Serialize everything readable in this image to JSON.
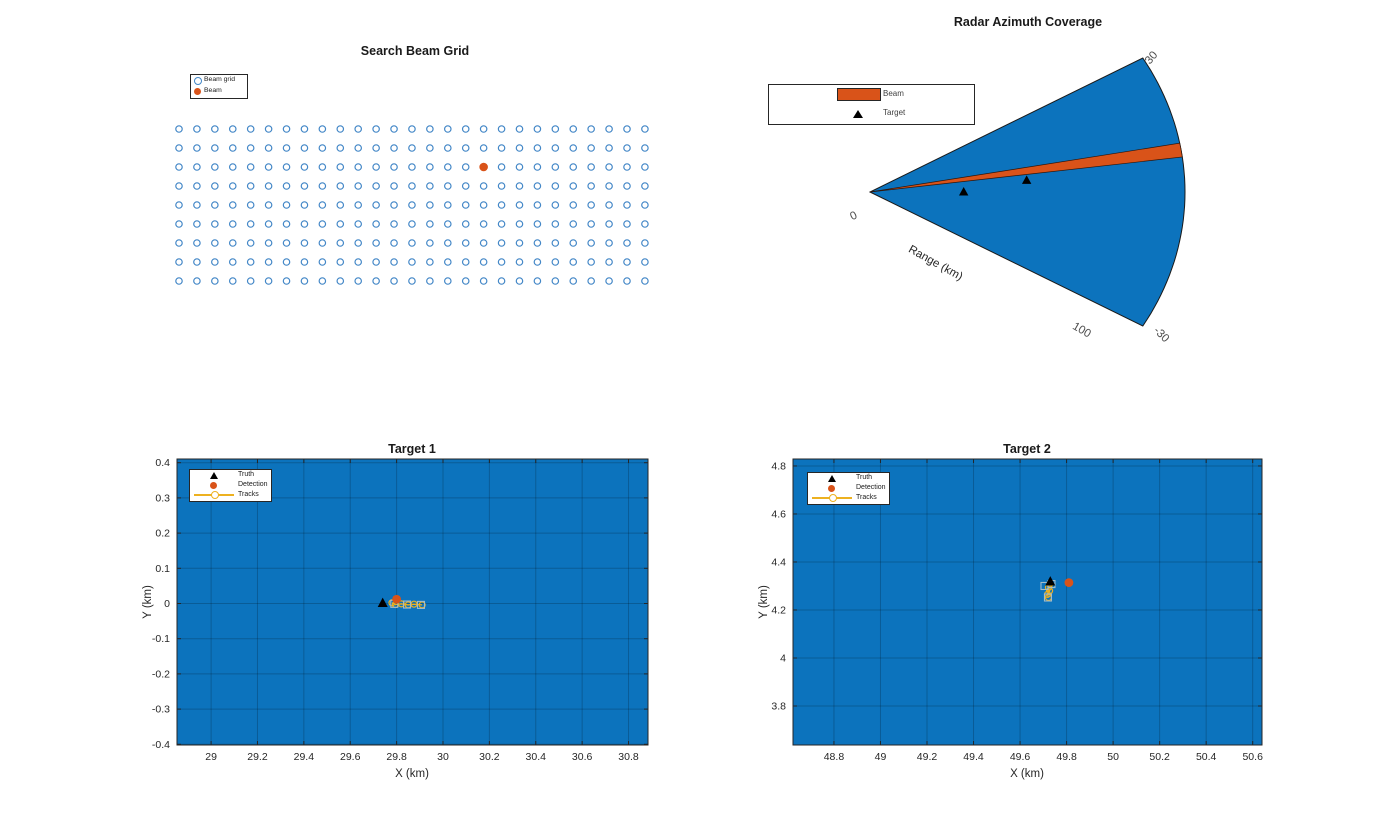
{
  "chart_data": [
    {
      "id": "beam-grid",
      "type": "scatter",
      "title": "Search Beam Grid",
      "legend": [
        {
          "label": "Beam grid",
          "marker": "circle-open",
          "color": "#4387c7"
        },
        {
          "label": "Beam",
          "marker": "circle-filled",
          "color": "#d95319"
        }
      ],
      "legend_position": "northwest",
      "grid_cols": 27,
      "grid_rows": 9,
      "active_beam_cell": {
        "col": 17,
        "row": 2
      },
      "colors": {
        "grid_marker": "#4387c7",
        "beam_marker": "#d95319"
      }
    },
    {
      "id": "radar-coverage",
      "type": "polar-sector",
      "title": "Radar Azimuth Coverage",
      "legend": [
        {
          "label": "Beam",
          "marker": "rect-filled",
          "color": "#d95319"
        },
        {
          "label": "Target",
          "marker": "triangle-filled",
          "color": "#000000"
        }
      ],
      "azimuth_limits_deg": [
        -30,
        30
      ],
      "range_limit_km": 100,
      "beam_azimuth_span_deg": [
        7.5,
        10.5
      ],
      "targets_km": [
        [
          29.74,
          0.0
        ],
        [
          49.73,
          4.32
        ]
      ],
      "angle_labels": [
        "30",
        "-30"
      ],
      "range_tick_labels": [
        "0",
        "100"
      ],
      "radial_axis_label": "Range (km)",
      "colors": {
        "coverage": "#0c73bd",
        "beam": "#d95319",
        "target": "#000000",
        "labels": "#4d4d4d"
      }
    },
    {
      "id": "target-1",
      "type": "scatter",
      "title": "Target 1",
      "xlabel": "X (km)",
      "ylabel": "Y (km)",
      "xlim": [
        28.853,
        30.884
      ],
      "ylim": [
        -0.402,
        0.4105
      ],
      "grid": true,
      "xticks": [
        29,
        29.2,
        29.4,
        29.6,
        29.8,
        30,
        30.2,
        30.4,
        30.6,
        30.8
      ],
      "xtick_labels": [
        "29",
        "29.2",
        "29.4",
        "29.6",
        "29.8",
        "30",
        "30.2",
        "30.4",
        "30.6",
        "30.8"
      ],
      "yticks": [
        0.4,
        0.3,
        0.2,
        0.1,
        0,
        -0.1,
        -0.2,
        -0.3,
        -0.4
      ],
      "ytick_labels": [
        "0.4",
        "0.3",
        "0.2",
        "0.1",
        "0",
        "-0.1",
        "-0.2",
        "-0.3",
        "-0.4"
      ],
      "legend": [
        {
          "label": "Truth",
          "marker": "triangle-filled",
          "color": "#000000"
        },
        {
          "label": "Detection",
          "marker": "circle-filled",
          "color": "#d95319"
        },
        {
          "label": "Tracks",
          "marker": "line-circle-open",
          "color": "#edb120"
        }
      ],
      "legend_position": "northwest",
      "truth": [
        [
          29.74,
          0.001
        ]
      ],
      "detection": [
        [
          29.8,
          0.012
        ]
      ],
      "track_line": [
        [
          29.78,
          0.002
        ],
        [
          29.795,
          -0.003
        ],
        [
          29.82,
          -0.001
        ],
        [
          29.85,
          -0.004
        ],
        [
          29.875,
          -0.002
        ],
        [
          29.91,
          -0.004
        ]
      ],
      "history_squares": [
        [
          29.79,
          -0.001
        ],
        [
          29.845,
          -0.003
        ],
        [
          29.905,
          -0.004
        ]
      ],
      "colors": {
        "background": "#0c73bd",
        "truth": "#000000",
        "detection": "#d95319",
        "track": "#edb120",
        "history": "#a3bcc9"
      }
    },
    {
      "id": "target-2",
      "type": "scatter",
      "title": "Target 2",
      "xlabel": "X (km)",
      "ylabel": "Y (km)",
      "xlim": [
        48.624,
        50.64
      ],
      "ylim": [
        3.6375,
        4.829
      ],
      "grid": true,
      "xticks": [
        48.8,
        49,
        49.2,
        49.4,
        49.6,
        49.8,
        50,
        50.2,
        50.4,
        50.6
      ],
      "xtick_labels": [
        "48.8",
        "49",
        "49.2",
        "49.4",
        "49.6",
        "49.8",
        "50",
        "50.2",
        "50.4",
        "50.6"
      ],
      "yticks": [
        4.8,
        4.6,
        4.4,
        4.2,
        4,
        3.8
      ],
      "ytick_labels": [
        "4.8",
        "4.6",
        "4.4",
        "4.2",
        "4",
        "3.8"
      ],
      "legend": [
        {
          "label": "Truth",
          "marker": "triangle-filled",
          "color": "#000000"
        },
        {
          "label": "Detection",
          "marker": "circle-filled",
          "color": "#d95319"
        },
        {
          "label": "Tracks",
          "marker": "line-circle-open",
          "color": "#edb120"
        }
      ],
      "legend_position": "northwest",
      "truth": [
        [
          49.73,
          4.318
        ]
      ],
      "detection": [
        [
          49.81,
          4.314
        ]
      ],
      "track_line": [
        [
          49.728,
          4.308
        ],
        [
          49.722,
          4.294
        ],
        [
          49.727,
          4.28
        ],
        [
          49.718,
          4.265
        ],
        [
          49.722,
          4.252
        ]
      ],
      "history_squares": [
        [
          49.705,
          4.3
        ],
        [
          49.72,
          4.252
        ],
        [
          49.735,
          4.308
        ]
      ],
      "colors": {
        "background": "#0c73bd",
        "truth": "#000000",
        "detection": "#d95319",
        "track": "#edb120",
        "history": "#a3bcc9"
      }
    }
  ]
}
